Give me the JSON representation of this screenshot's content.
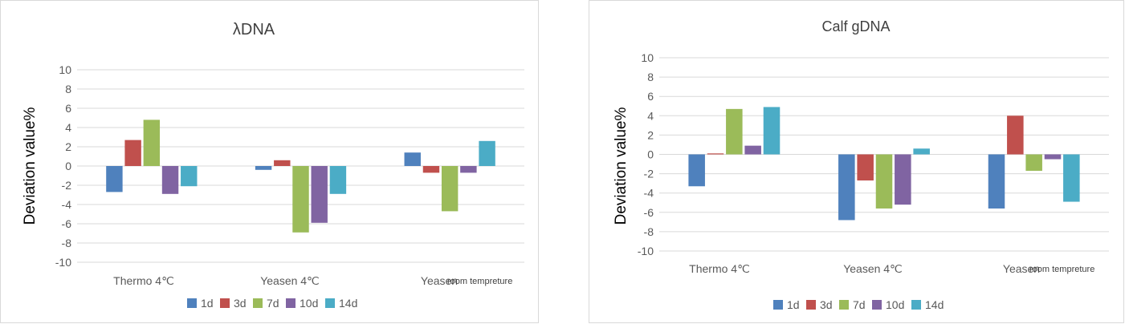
{
  "colors": {
    "series": [
      "#4f81bd",
      "#c0504d",
      "#9bbb59",
      "#8064a2",
      "#4bacc6"
    ],
    "grid": "#d9d9d9",
    "axis_text": "#595959",
    "title_text": "#404040"
  },
  "chart_data": [
    {
      "type": "bar",
      "title": "λDNA",
      "ylabel": "Deviation value%",
      "xlabel": "",
      "ylim": [
        -10,
        10
      ],
      "yticks": [
        10,
        8,
        6,
        4,
        2,
        0,
        -2,
        -4,
        -6,
        -8,
        -10
      ],
      "grid": true,
      "legend_position": "bottom",
      "categories": [
        "Thermo 4℃",
        "Yeasen 4℃",
        "Yeasen"
      ],
      "category_notes": [
        "",
        "",
        "room tempreture"
      ],
      "series": [
        {
          "name": "1d",
          "values": [
            -2.7,
            -0.4,
            1.4
          ]
        },
        {
          "name": "3d",
          "values": [
            2.7,
            0.6,
            -0.7
          ]
        },
        {
          "name": "7d",
          "values": [
            4.8,
            -6.9,
            -4.7
          ]
        },
        {
          "name": "10d",
          "values": [
            -2.9,
            -5.9,
            -0.7
          ]
        },
        {
          "name": "14d",
          "values": [
            -2.1,
            -2.9,
            2.6
          ]
        }
      ]
    },
    {
      "type": "bar",
      "title": "Calf gDNA",
      "ylabel": "Deviation value%",
      "xlabel": "",
      "ylim": [
        -10,
        10
      ],
      "yticks": [
        10,
        8,
        6,
        4,
        2,
        0,
        -2,
        -4,
        -6,
        -8,
        -10
      ],
      "grid": true,
      "legend_position": "bottom",
      "categories": [
        "Thermo 4℃",
        "Yeasen 4℃",
        "Yeasen"
      ],
      "category_notes": [
        "",
        "",
        "room tempreture"
      ],
      "series": [
        {
          "name": "1d",
          "values": [
            -3.3,
            -6.8,
            -5.6
          ]
        },
        {
          "name": "3d",
          "values": [
            0.1,
            -2.7,
            4.0
          ]
        },
        {
          "name": "7d",
          "values": [
            4.7,
            -5.6,
            -1.7
          ]
        },
        {
          "name": "10d",
          "values": [
            0.9,
            -5.2,
            -0.5
          ]
        },
        {
          "name": "14d",
          "values": [
            4.9,
            0.6,
            -4.9
          ]
        }
      ]
    }
  ]
}
